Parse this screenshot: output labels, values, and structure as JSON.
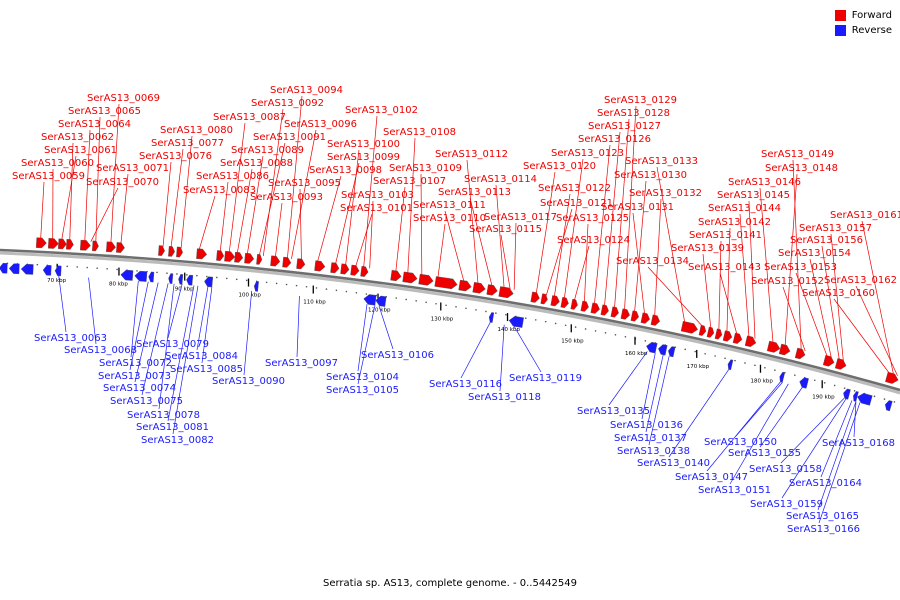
{
  "legend": {
    "forward_label": "Forward",
    "reverse_label": "Reverse",
    "forward_color": "#ee0000",
    "reverse_color": "#1a1aff"
  },
  "caption": "Serratia sp. AS13, complete genome. - 0..5442549",
  "scale_ticks": [
    "70 kbp",
    "80 kbp",
    "90 kbp",
    "100 kbp",
    "110 kbp",
    "120 kbp",
    "130 kbp",
    "140 kbp",
    "150 kbp",
    "160 kbp",
    "170 kbp",
    "180 kbp",
    "190 kbp"
  ],
  "forward_genes": [
    "SerAS13_0059",
    "SerAS13_0060",
    "SerAS13_0061",
    "SerAS13_0062",
    "SerAS13_0064",
    "SerAS13_0065",
    "SerAS13_0069",
    "SerAS13_0070",
    "SerAS13_0071",
    "SerAS13_0076",
    "SerAS13_0077",
    "SerAS13_0080",
    "SerAS13_0083",
    "SerAS13_0086",
    "SerAS13_0087",
    "SerAS13_0088",
    "SerAS13_0089",
    "SerAS13_0091",
    "SerAS13_0092",
    "SerAS13_0093",
    "SerAS13_0094",
    "SerAS13_0095",
    "SerAS13_0096",
    "SerAS13_0098",
    "SerAS13_0099",
    "SerAS13_0100",
    "SerAS13_0101",
    "SerAS13_0102",
    "SerAS13_0103",
    "SerAS13_0107",
    "SerAS13_0108",
    "SerAS13_0109",
    "SerAS13_0110",
    "SerAS13_0111",
    "SerAS13_0112",
    "SerAS13_0113",
    "SerAS13_0114",
    "SerAS13_0115",
    "SerAS13_0117",
    "SerAS13_0120",
    "SerAS13_0121",
    "SerAS13_0122",
    "SerAS13_0123",
    "SerAS13_0124",
    "SerAS13_0125",
    "SerAS13_0126",
    "SerAS13_0127",
    "SerAS13_0128",
    "SerAS13_0129",
    "SerAS13_0130",
    "SerAS13_0131",
    "SerAS13_0132",
    "SerAS13_0133",
    "SerAS13_0134",
    "SerAS13_0139",
    "SerAS13_0141",
    "SerAS13_0142",
    "SerAS13_0143",
    "SerAS13_0144",
    "SerAS13_0145",
    "SerAS13_0146",
    "SerAS13_0148",
    "SerAS13_0149",
    "SerAS13_0152",
    "SerAS13_0153",
    "SerAS13_0154",
    "SerAS13_0156",
    "SerAS13_0157",
    "SerAS13_0160",
    "SerAS13_0161",
    "SerAS13_0162"
  ],
  "reverse_genes": [
    "SerAS13_0063",
    "SerAS13_0068",
    "SerAS13_0072",
    "SerAS13_0073",
    "SerAS13_0074",
    "SerAS13_0075",
    "SerAS13_0078",
    "SerAS13_0079",
    "SerAS13_0081",
    "SerAS13_0082",
    "SerAS13_0084",
    "SerAS13_0085",
    "SerAS13_0090",
    "SerAS13_0097",
    "SerAS13_0104",
    "SerAS13_0105",
    "SerAS13_0106",
    "SerAS13_0116",
    "SerAS13_0118",
    "SerAS13_0119",
    "SerAS13_0135",
    "SerAS13_0136",
    "SerAS13_0137",
    "SerAS13_0138",
    "SerAS13_0140",
    "SerAS13_0147",
    "SerAS13_0150",
    "SerAS13_0151",
    "SerAS13_0155",
    "SerAS13_0158",
    "SerAS13_0159",
    "SerAS13_0164",
    "SerAS13_0165",
    "SerAS13_0166",
    "SerAS13_0168"
  ]
}
